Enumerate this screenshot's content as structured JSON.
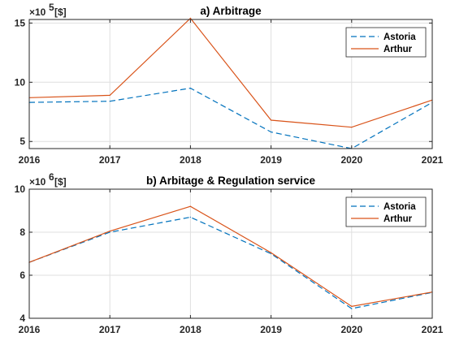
{
  "chart_data": [
    {
      "type": "line",
      "title": "a) Arbitrage",
      "exponent_label": "×10",
      "exponent_power": "5",
      "unit_label": "[$]",
      "x": [
        2016,
        2017,
        2018,
        2019,
        2020,
        2021
      ],
      "x_tick_labels": [
        "2016",
        "2017",
        "2018",
        "2019",
        "2020",
        "2021"
      ],
      "y_ticks": [
        5,
        10,
        15
      ],
      "y_tick_labels": [
        "5",
        "10",
        "15"
      ],
      "ylim": [
        4.4,
        15.3
      ],
      "xlim": [
        2016,
        2021
      ],
      "grid": true,
      "legend_position": "top-right",
      "series": [
        {
          "name": "Astoria",
          "style": "dashed",
          "color": "#0072BD",
          "values": [
            8.3,
            8.4,
            9.5,
            5.8,
            4.4,
            8.3
          ]
        },
        {
          "name": "Arthur",
          "style": "solid",
          "color": "#D95319",
          "values": [
            8.7,
            8.9,
            15.4,
            6.8,
            6.2,
            8.5
          ]
        }
      ]
    },
    {
      "type": "line",
      "title": "b) Arbitage & Regulation service",
      "exponent_label": "×10",
      "exponent_power": "6",
      "unit_label": "[$]",
      "x": [
        2016,
        2017,
        2018,
        2019,
        2020,
        2021
      ],
      "x_tick_labels": [
        "2016",
        "2017",
        "2018",
        "2019",
        "2020",
        "2021"
      ],
      "y_ticks": [
        4,
        6,
        8,
        10
      ],
      "y_tick_labels": [
        "4",
        "6",
        "8",
        "10"
      ],
      "ylim": [
        4,
        10
      ],
      "xlim": [
        2016,
        2021
      ],
      "grid": true,
      "legend_position": "top-right",
      "series": [
        {
          "name": "Astoria",
          "style": "dashed",
          "color": "#0072BD",
          "values": [
            6.6,
            8.0,
            8.7,
            7.0,
            4.45,
            5.2
          ]
        },
        {
          "name": "Arthur",
          "style": "solid",
          "color": "#D95319",
          "values": [
            6.6,
            8.05,
            9.2,
            7.05,
            4.55,
            5.22
          ]
        }
      ]
    }
  ]
}
